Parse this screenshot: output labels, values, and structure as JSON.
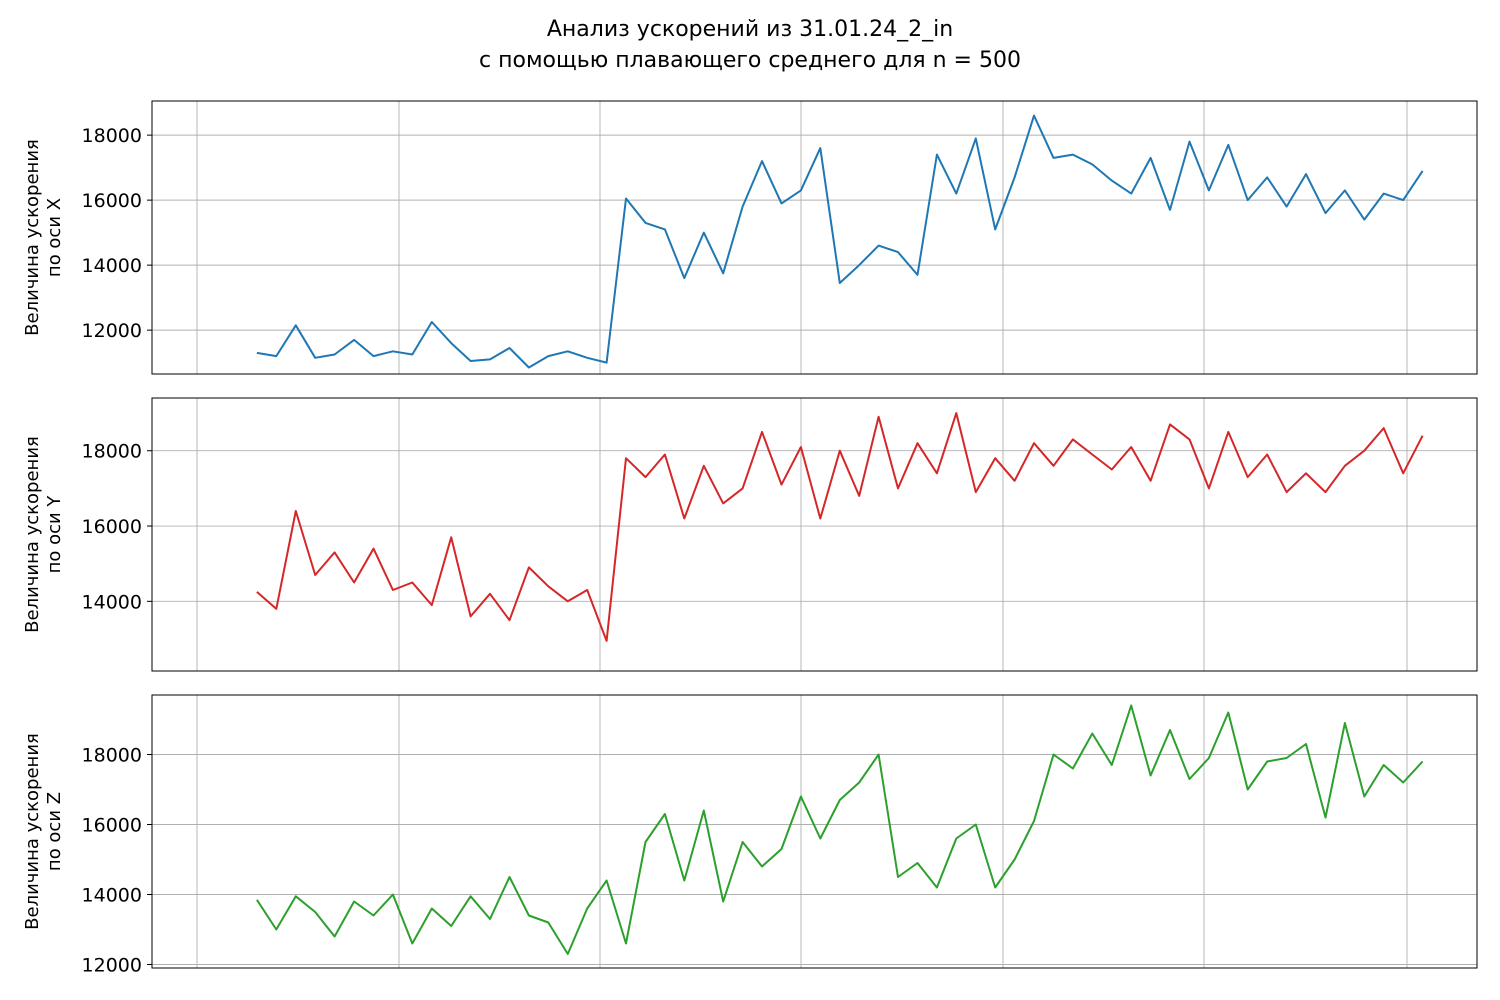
{
  "title_line1": "Анализ ускорений из 31.01.24_2_in",
  "title_line2": "с помощью плавающего среднего для n = 500",
  "chart_data": [
    {
      "type": "line",
      "ylabel_line1": "Величина ускорения",
      "ylabel_line2": "по оси X",
      "color": "#1f77b4",
      "ylim": [
        10650,
        19050
      ],
      "yticks": [
        12000,
        14000,
        16000,
        18000
      ],
      "grid": true,
      "series": [
        {
          "x": [
            0,
            0.5,
            1,
            1.5,
            2,
            2.5,
            3,
            3.5,
            4,
            4.5,
            5,
            5.5,
            6,
            6.5,
            7,
            7.5,
            8,
            8.5,
            9,
            9.5,
            10,
            10.5,
            11,
            11.5,
            12,
            12.5,
            13,
            13.5,
            14,
            14.5,
            15,
            15.5,
            16,
            16.5,
            17,
            17.5,
            18,
            18.5,
            19,
            19.5,
            20,
            20.5,
            21,
            21.5,
            22,
            22.5,
            23,
            23.5,
            24,
            24.5,
            25,
            25.5,
            26,
            26.5,
            27,
            27.5,
            28,
            28.5,
            29,
            29.5,
            30
          ],
          "values": [
            11300,
            11200,
            12150,
            11150,
            11250,
            11700,
            11200,
            11350,
            11250,
            12250,
            11600,
            11050,
            11100,
            11450,
            10850,
            11200,
            11350,
            11150,
            11000,
            16050,
            15300,
            15100,
            13600,
            15000,
            13750,
            15800,
            17200,
            15900,
            16300,
            17600,
            13450,
            14000,
            14600,
            14400,
            13700,
            17400,
            16200,
            17900,
            15100,
            16700,
            18600,
            17300,
            17400,
            17100,
            16600,
            16200,
            17300,
            15700,
            17800,
            16300,
            17700,
            16000,
            16700,
            15800,
            16800,
            15600,
            16300,
            15400,
            16200,
            16000,
            16900
          ]
        }
      ]
    },
    {
      "type": "line",
      "ylabel_line1": "Величина ускорения",
      "ylabel_line2": "по оси Y",
      "color": "#d62728",
      "ylim": [
        12150,
        19400
      ],
      "yticks": [
        14000,
        16000,
        18000
      ],
      "grid": true,
      "series": [
        {
          "x": [
            0,
            0.5,
            1,
            1.5,
            2,
            2.5,
            3,
            3.5,
            4,
            4.5,
            5,
            5.5,
            6,
            6.5,
            7,
            7.5,
            8,
            8.5,
            9,
            9.5,
            10,
            10.5,
            11,
            11.5,
            12,
            12.5,
            13,
            13.5,
            14,
            14.5,
            15,
            15.5,
            16,
            16.5,
            17,
            17.5,
            18,
            18.5,
            19,
            19.5,
            20,
            20.5,
            21,
            21.5,
            22,
            22.5,
            23,
            23.5,
            24,
            24.5,
            25,
            25.5,
            26,
            26.5,
            27,
            27.5,
            28,
            28.5,
            29,
            29.5,
            30
          ],
          "values": [
            14250,
            13800,
            16400,
            14700,
            15300,
            14500,
            15400,
            14300,
            14500,
            13900,
            15700,
            13600,
            14200,
            13500,
            14900,
            14400,
            14000,
            14300,
            12950,
            17800,
            17300,
            17900,
            16200,
            17600,
            16600,
            17000,
            18500,
            17100,
            18100,
            16200,
            18000,
            16800,
            18900,
            17000,
            18200,
            17400,
            19000,
            16900,
            17800,
            17200,
            18200,
            17600,
            18300,
            17900,
            17500,
            18100,
            17200,
            18700,
            18300,
            17000,
            18500,
            17300,
            17900,
            16900,
            17400,
            16900,
            17600,
            18000,
            18600,
            17400,
            18400
          ]
        }
      ]
    },
    {
      "type": "line",
      "ylabel_line1": "Величина ускорения",
      "ylabel_line2": "по оси Z",
      "color": "#2ca02c",
      "ylim": [
        11900,
        19700
      ],
      "yticks": [
        12000,
        14000,
        16000,
        18000
      ],
      "grid": true,
      "series": [
        {
          "x": [
            0,
            0.5,
            1,
            1.5,
            2,
            2.5,
            3,
            3.5,
            4,
            4.5,
            5,
            5.5,
            6,
            6.5,
            7,
            7.5,
            8,
            8.5,
            9,
            9.5,
            10,
            10.5,
            11,
            11.5,
            12,
            12.5,
            13,
            13.5,
            14,
            14.5,
            15,
            15.5,
            16,
            16.5,
            17,
            17.5,
            18,
            18.5,
            19,
            19.5,
            20,
            20.5,
            21,
            21.5,
            22,
            22.5,
            23,
            23.5,
            24,
            24.5,
            25,
            25.5,
            26,
            26.5,
            27,
            27.5,
            28,
            28.5,
            29,
            29.5,
            30
          ],
          "values": [
            13850,
            13000,
            13950,
            13500,
            12800,
            13800,
            13400,
            14000,
            12600,
            13600,
            13100,
            13950,
            13300,
            14500,
            13400,
            13200,
            12300,
            13600,
            14400,
            12600,
            15500,
            16300,
            14400,
            16400,
            13800,
            15500,
            14800,
            15300,
            16800,
            15600,
            16700,
            17200,
            18000,
            14500,
            14900,
            14200,
            15600,
            16000,
            14200,
            15000,
            16100,
            18000,
            17600,
            18600,
            17700,
            19400,
            17400,
            18700,
            17300,
            17900,
            19200,
            17000,
            17800,
            17900,
            18300,
            16200,
            18900,
            16800,
            17700,
            17200,
            17800
          ]
        }
      ]
    }
  ]
}
